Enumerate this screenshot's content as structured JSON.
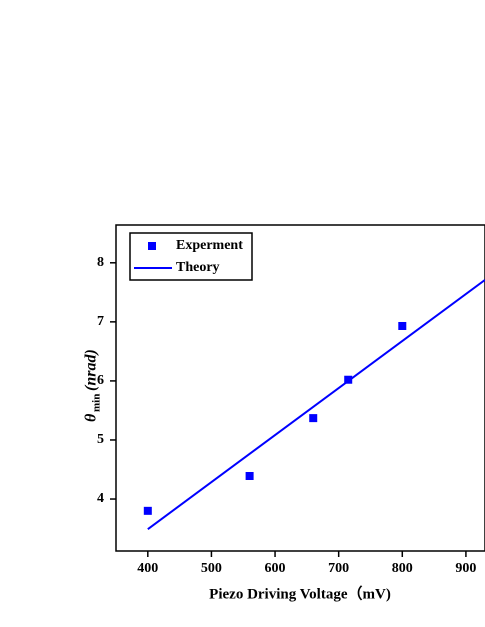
{
  "chart_data": {
    "type": "scatter",
    "x_label": "Piezo Driving Voltage（mV)",
    "y_label": {
      "symbol": "θ",
      "subscript": "min",
      "unit": "(nrad)"
    },
    "series": [
      {
        "name": "Experment",
        "type": "scatter",
        "color": "#0000ff",
        "x": [
          400,
          560,
          660,
          715,
          800
        ],
        "y": [
          3.8,
          4.39,
          5.37,
          6.02,
          6.93
        ]
      },
      {
        "name": "Theory",
        "type": "line",
        "color": "#0000ff",
        "x": [
          400,
          930
        ],
        "y": [
          3.49,
          7.71
        ]
      }
    ],
    "xlim": [
      350,
      930
    ],
    "ylim": [
      3.12,
      8.64
    ],
    "xticks": [
      400,
      500,
      600,
      700,
      800,
      900
    ],
    "yticks": [
      4,
      5,
      6,
      7,
      8
    ],
    "legend": "top-left",
    "grid": false
  }
}
